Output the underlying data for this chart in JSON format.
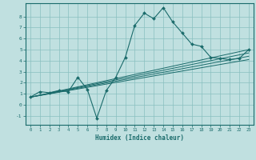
{
  "title": "",
  "xlabel": "Humidex (Indice chaleur)",
  "xlim": [
    -0.5,
    23.5
  ],
  "ylim": [
    -1.8,
    9.2
  ],
  "xticks": [
    0,
    1,
    2,
    3,
    4,
    5,
    6,
    7,
    8,
    9,
    10,
    11,
    12,
    13,
    14,
    15,
    16,
    17,
    18,
    19,
    20,
    21,
    22,
    23
  ],
  "yticks": [
    -1,
    0,
    1,
    2,
    3,
    4,
    5,
    6,
    7,
    8
  ],
  "bg_color": "#c0e0e0",
  "line_color": "#1a6b6b",
  "grid_color": "#88c0c0",
  "main_line": {
    "x": [
      0,
      1,
      2,
      3,
      4,
      5,
      6,
      7,
      8,
      9,
      10,
      11,
      12,
      13,
      14,
      15,
      16,
      17,
      18,
      19,
      20,
      21,
      22,
      23
    ],
    "y": [
      0.7,
      1.2,
      1.1,
      1.3,
      1.2,
      2.5,
      1.4,
      -1.2,
      1.3,
      2.5,
      4.3,
      7.2,
      8.3,
      7.8,
      8.8,
      7.5,
      6.5,
      5.5,
      5.3,
      4.3,
      4.2,
      4.1,
      4.2,
      5.0
    ]
  },
  "trend_lines": [
    {
      "x": [
        0,
        23
      ],
      "y": [
        0.7,
        5.0
      ]
    },
    {
      "x": [
        0,
        23
      ],
      "y": [
        0.7,
        4.7
      ]
    },
    {
      "x": [
        0,
        23
      ],
      "y": [
        0.7,
        4.4
      ]
    },
    {
      "x": [
        0,
        23
      ],
      "y": [
        0.7,
        4.1
      ]
    }
  ]
}
